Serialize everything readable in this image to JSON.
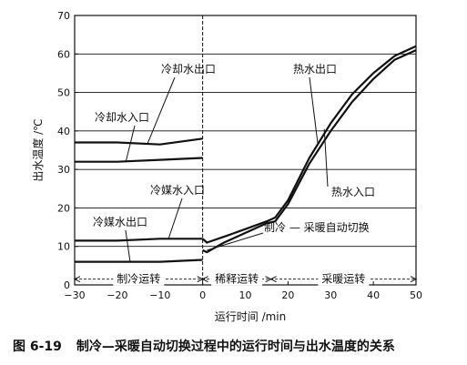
{
  "chart_data": {
    "type": "line",
    "xlabel": "运行时间 /min",
    "ylabel": "出水温度 /℃",
    "xlim": [
      -30,
      50
    ],
    "ylim": [
      0,
      70
    ],
    "xticks": [
      -30,
      -20,
      -10,
      0,
      10,
      20,
      30,
      40,
      50
    ],
    "yticks": [
      0,
      10,
      20,
      30,
      40,
      50,
      60,
      70
    ],
    "grid": "horizontal",
    "series": [
      {
        "name": "冷却水出口",
        "x": [
          -30,
          -20,
          -10,
          0
        ],
        "y": [
          37,
          37,
          36.5,
          38
        ]
      },
      {
        "name": "冷却水入口",
        "x": [
          -30,
          -20,
          -10,
          0
        ],
        "y": [
          32,
          32,
          32.5,
          33
        ]
      },
      {
        "name": "冷媒水出口",
        "x": [
          -30,
          -20,
          -10,
          0
        ],
        "y": [
          6,
          6,
          6,
          6.5
        ]
      },
      {
        "name": "冷媒水入口",
        "x": [
          -30,
          -20,
          -10,
          0
        ],
        "y": [
          11.5,
          11.5,
          12,
          12
        ]
      },
      {
        "name": "热水出口",
        "x": [
          0,
          1,
          5,
          10,
          15,
          17,
          20,
          25,
          30,
          35,
          40,
          45,
          50
        ],
        "y": [
          12,
          11,
          12.5,
          14.5,
          16.5,
          17.5,
          22,
          33,
          42,
          49.5,
          55,
          59.5,
          62
        ]
      },
      {
        "name": "热水入口",
        "x": [
          0,
          1,
          5,
          10,
          15,
          17,
          20,
          25,
          30,
          35,
          40,
          45,
          50
        ],
        "y": [
          9,
          8.5,
          11,
          13.5,
          16,
          16.5,
          21,
          31.5,
          40,
          47.5,
          53.5,
          58.5,
          61
        ]
      }
    ],
    "divider_x": 0,
    "periods": [
      {
        "label": "制冷运转",
        "from": -30,
        "to": 0
      },
      {
        "label": "稀释运转",
        "from": 0,
        "to": 16
      },
      {
        "label": "采暖运转",
        "from": 16,
        "to": 50
      }
    ],
    "annotations": {
      "switch_label": "制冷 — 采暖自动切换",
      "switch_point": [
        1,
        9
      ]
    }
  },
  "caption": {
    "number": "图 6-19",
    "text": "制冷—采暖自动切换过程中的运行时间与出水温度的关系"
  }
}
